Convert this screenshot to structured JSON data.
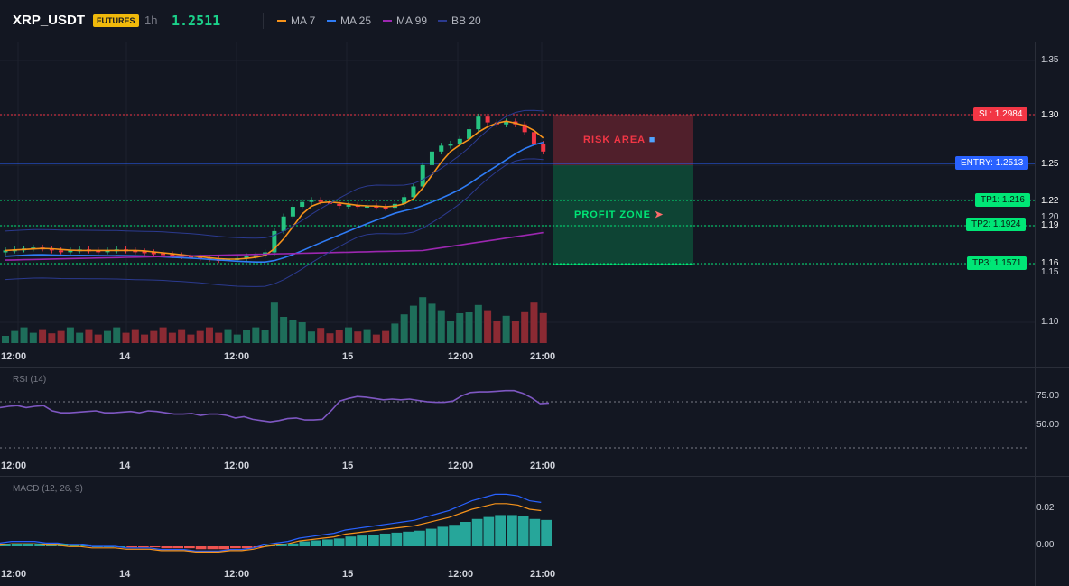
{
  "header": {
    "symbol": "XRP_USDT",
    "badge": "FUTURES",
    "timeframe": "1h",
    "last_price": "1.2511",
    "legend": [
      {
        "label": "MA 7",
        "color": "#f7931a"
      },
      {
        "label": "MA 25",
        "color": "#2f7cf6"
      },
      {
        "label": "MA 99",
        "color": "#9c27b0"
      },
      {
        "label": "BB 20",
        "color": "#2b3a8f"
      }
    ]
  },
  "price_axis": [
    "1.35",
    "1.30",
    "1.25",
    "1.22",
    "1.20",
    "1.19",
    "1.16",
    "1.15",
    "1.10"
  ],
  "time_axis": [
    "12:00",
    "14",
    "12:00",
    "15",
    "12:00",
    "21:00"
  ],
  "levels": {
    "sl": {
      "label": "SL: 1.2984",
      "tick": "1.30",
      "color": "#f23645"
    },
    "entry": {
      "label": "ENTRY: 1.2513",
      "tick": "1.25",
      "color": "#2962ff"
    },
    "tp1": {
      "label": "TP1: 1.216",
      "tick": "1.22",
      "color": "#00e676"
    },
    "tp2": {
      "label": "TP2: 1.1924",
      "tick": "1.19",
      "color": "#00e676"
    },
    "tp3": {
      "label": "TP3: 1.1571",
      "tick": "1.16",
      "color": "#00e676"
    }
  },
  "zones": {
    "risk_label": "RISK AREA",
    "profit_label": "PROFIT ZONE"
  },
  "rsi": {
    "title": "RSI (14)",
    "ticks": [
      "75.00",
      "50.00"
    ]
  },
  "macd": {
    "title": "MACD (12, 26, 9)",
    "ticks": [
      "0.02",
      "0.00"
    ]
  },
  "colors": {
    "up": "#26c281",
    "down": "#f23645",
    "background": "#131722"
  },
  "chart_data": {
    "type": "candlestick",
    "ylim": [
      1.085,
      1.37
    ],
    "candles_close_approx": [
      1.16,
      1.161,
      1.162,
      1.163,
      1.162,
      1.16,
      1.159,
      1.16,
      1.161,
      1.16,
      1.159,
      1.16,
      1.161,
      1.16,
      1.159,
      1.158,
      1.157,
      1.156,
      1.155,
      1.154,
      1.153,
      1.152,
      1.151,
      1.15,
      1.151,
      1.152,
      1.154,
      1.155,
      1.158,
      1.18,
      1.195,
      1.205,
      1.21,
      1.212,
      1.21,
      1.208,
      1.206,
      1.207,
      1.205,
      1.206,
      1.205,
      1.204,
      1.208,
      1.215,
      1.226,
      1.248,
      1.262,
      1.268,
      1.27,
      1.275,
      1.285,
      1.298,
      1.292,
      1.29,
      1.293,
      1.29,
      1.282,
      1.27,
      1.262
    ],
    "rsi_values": [
      60,
      62,
      63,
      60,
      62,
      63,
      55,
      52,
      52,
      53,
      54,
      55,
      52,
      52,
      53,
      54,
      52,
      55,
      54,
      52,
      50,
      50,
      51,
      48,
      50,
      50,
      48,
      44,
      46,
      42,
      40,
      38,
      40,
      43,
      44,
      41,
      41,
      42,
      55,
      70,
      74,
      77,
      76,
      74,
      72,
      73,
      72,
      73,
      71,
      69,
      68,
      68,
      70,
      78,
      83,
      84,
      84,
      85,
      86,
      86,
      82,
      75,
      66,
      67
    ],
    "macd_values": [
      0.002,
      0.003,
      0.003,
      0.003,
      0.002,
      0.002,
      0.001,
      0.001,
      0.0,
      0.0,
      0.0,
      -0.001,
      -0.001,
      -0.001,
      -0.002,
      -0.002,
      -0.002,
      -0.003,
      -0.003,
      -0.003,
      -0.002,
      -0.002,
      -0.001,
      0.001,
      0.002,
      0.003,
      0.005,
      0.006,
      0.007,
      0.008,
      0.01,
      0.011,
      0.012,
      0.013,
      0.014,
      0.015,
      0.016,
      0.018,
      0.02,
      0.022,
      0.025,
      0.028,
      0.03,
      0.032,
      0.032,
      0.031,
      0.028,
      0.027
    ]
  }
}
